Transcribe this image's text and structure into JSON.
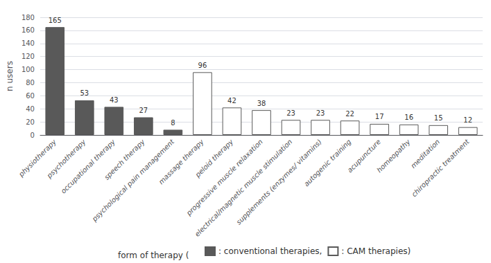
{
  "chart_data": {
    "type": "bar",
    "categories": [
      "physiotherapy",
      "psychotherapy",
      "occupational therapy",
      "speech therapy",
      "psychological pain management",
      "massage therapy",
      "peloid therapy",
      "progressive muscle relaxation",
      "electrical/magnetic muscle stimulation",
      "supplements (enzymes/ vitamins)",
      "autogenic training",
      "acupuncture",
      "homeopathy",
      "meditation",
      "chiropractic treatment"
    ],
    "series": [
      {
        "name": ": conventional therapies,",
        "color": "#595959",
        "values": [
          165,
          53,
          43,
          27,
          8,
          null,
          null,
          null,
          null,
          null,
          null,
          null,
          null,
          null,
          null
        ]
      },
      {
        "name": ": CAM therapies)",
        "color": "#ffffff",
        "values": [
          null,
          null,
          null,
          null,
          null,
          96,
          42,
          38,
          23,
          23,
          22,
          17,
          16,
          15,
          12
        ]
      }
    ],
    "ylabel": "n users",
    "annotation": "form of therapy (",
    "ylim": [
      0,
      180
    ],
    "yticks": [
      0,
      20,
      40,
      60,
      80,
      100,
      120,
      140,
      160,
      180
    ],
    "grid": true,
    "data_labels": true,
    "legend": "bottom"
  }
}
